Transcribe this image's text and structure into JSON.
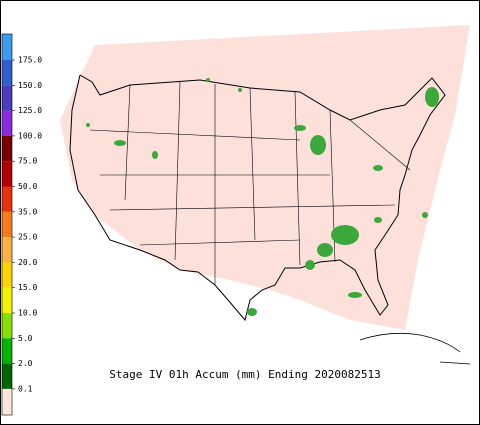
{
  "title": "Stage IV 01h Accum (mm) Ending 2020082513",
  "legend": {
    "labels": [
      "175.0",
      "150.0",
      "125.0",
      "100.0",
      "75.0",
      "50.0",
      "35.0",
      "25.0",
      "20.0",
      "15.0",
      "10.0",
      "5.0",
      "2.0",
      "0.1"
    ],
    "colors": [
      "#3c9cf0",
      "#2f5fd0",
      "#4b3cc0",
      "#8a2be2",
      "#7a0000",
      "#b40000",
      "#e8300a",
      "#ff7a1a",
      "#ffb040",
      "#ffd400",
      "#f4f400",
      "#88e000",
      "#00b400",
      "#006400",
      "#ffe4dc"
    ]
  }
}
